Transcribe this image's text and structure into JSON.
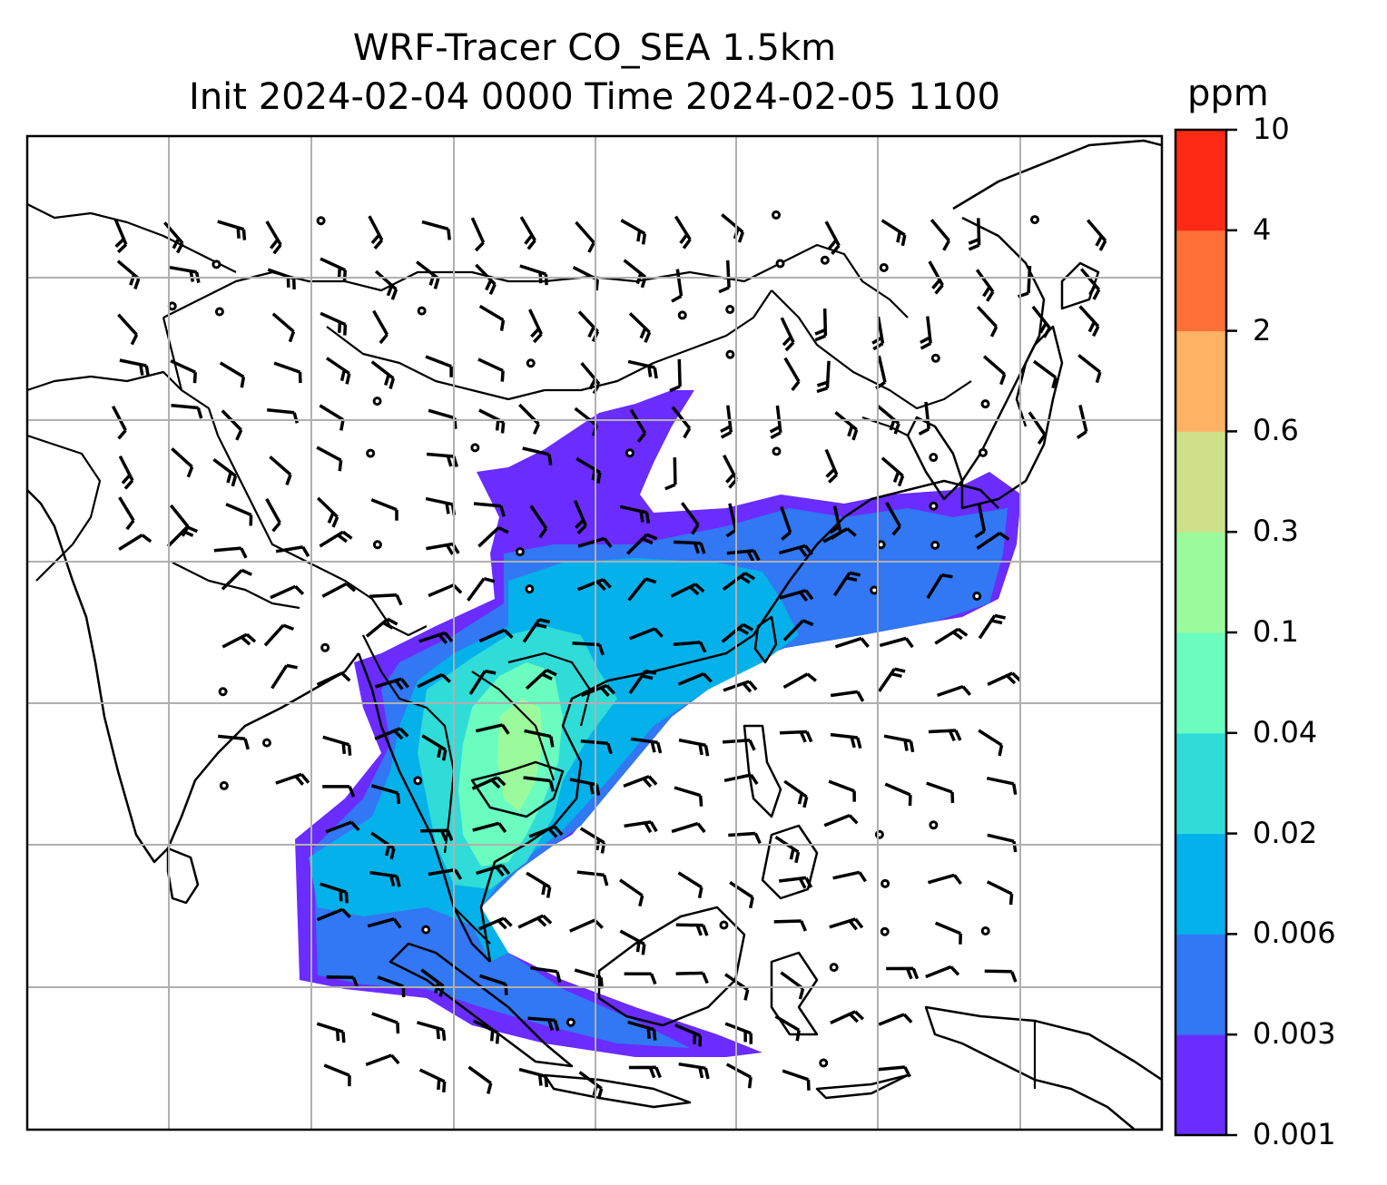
{
  "title": {
    "line1": "WRF-Tracer CO_SEA 1.5km",
    "line2": "Init 2024-02-04 0000 Time 2024-02-05 1100"
  },
  "colorbar": {
    "unit": "ppm",
    "levels": [
      "0.001",
      "0.003",
      "0.006",
      "0.02",
      "0.04",
      "0.1",
      "0.3",
      "0.6",
      "2",
      "4",
      "10"
    ],
    "colors": [
      "#6a2cff",
      "#3277f3",
      "#04b1ea",
      "#30dcd8",
      "#6bfcc0",
      "#9bfb9c",
      "#cfe188",
      "#feb264",
      "#ff7038",
      "#ff2a14"
    ]
  },
  "map": {
    "field": "CO tracer concentration",
    "grid": true,
    "features": [
      "coastlines",
      "country-borders",
      "wind-barbs",
      "calm-circles"
    ]
  }
}
